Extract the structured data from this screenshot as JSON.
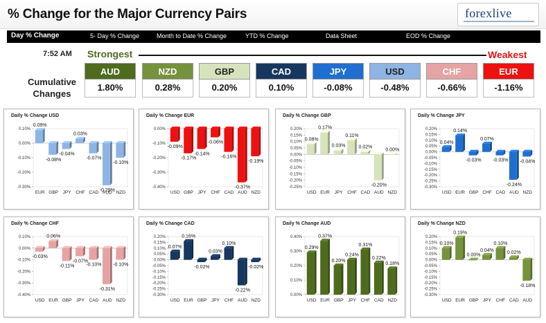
{
  "header": {
    "title": "% Change for the Major Currency Pairs"
  },
  "logo": {
    "brand_left": "fore",
    "brand_x": "x",
    "brand_right": "live"
  },
  "nav": {
    "tabs": [
      {
        "label": "Day % Change",
        "active": true
      },
      {
        "label": "5- Day % Change",
        "active": false
      },
      {
        "label": "Month to Date % Change",
        "active": false
      },
      {
        "label": "YTD % Change",
        "active": false
      },
      {
        "label": "Data Sheet",
        "active": false
      },
      {
        "label": "EOD % Change",
        "active": false
      }
    ]
  },
  "summary": {
    "time": "7:52 AM",
    "strongest": "Strongest",
    "weakest": "Weakest",
    "cumulative_label_line1": "Cumulative",
    "cumulative_label_line2": "Changes",
    "tiles": [
      {
        "currency": "AUD",
        "value": "1.80%",
        "bg": "#4e6b1e",
        "fg": "#ffffff"
      },
      {
        "currency": "NZD",
        "value": "0.28%",
        "bg": "#76923c",
        "fg": "#ffffff"
      },
      {
        "currency": "GBP",
        "value": "0.20%",
        "bg": "#d6e3bc",
        "fg": "#222222"
      },
      {
        "currency": "CAD",
        "value": "0.10%",
        "bg": "#17375e",
        "fg": "#ffffff"
      },
      {
        "currency": "JPY",
        "value": "-0.08%",
        "bg": "#1f6fd0",
        "fg": "#ffffff"
      },
      {
        "currency": "USD",
        "value": "-0.48%",
        "bg": "#8eb4e3",
        "fg": "#222222"
      },
      {
        "currency": "CHF",
        "value": "-0.66%",
        "bg": "#e6a3a3",
        "fg": "#ffffff"
      },
      {
        "currency": "EUR",
        "value": "-1.16%",
        "bg": "#ee1111",
        "fg": "#ffffff"
      }
    ]
  },
  "chart_data": [
    {
      "type": "bar",
      "title": "Daily % Change USD",
      "color": "#8eb4e3",
      "categories": [
        "EUR",
        "GBP",
        "JPY",
        "CHF",
        "CAD",
        "AUD",
        "NZD"
      ],
      "values": [
        0.09,
        -0.08,
        -0.04,
        0.03,
        -0.07,
        -0.29,
        -0.1
      ],
      "labels": [
        "0.09%",
        "-0.08%",
        "-0.04%",
        "0.03%",
        "-0.07%",
        "-0.29%",
        "-0.10%"
      ],
      "ylim": [
        -0.3,
        0.1
      ],
      "ticks": [
        "0.10%",
        "0.00%",
        "-0.10%",
        "-0.20%",
        "-0.30%"
      ]
    },
    {
      "type": "bar",
      "title": "Daily % Change EUR",
      "color": "#ee1111",
      "categories": [
        "USD",
        "GBP",
        "JPY",
        "CHF",
        "CAD",
        "AUD",
        "NZD"
      ],
      "values": [
        -0.09,
        -0.17,
        -0.14,
        -0.06,
        -0.16,
        -0.37,
        -0.19
      ],
      "labels": [
        "-0.09%",
        "-0.17%",
        "-0.14%",
        "-0.06%",
        "-0.16%",
        "-0.37%",
        "-0.19%"
      ],
      "ylim": [
        -0.4,
        0.0
      ],
      "ticks": [
        "0.00%",
        "-0.10%",
        "-0.20%",
        "-0.30%",
        "-0.40%"
      ]
    },
    {
      "type": "bar",
      "title": "Daily % Change GBP",
      "color": "#d6e3bc",
      "categories": [
        "USD",
        "EUR",
        "JPY",
        "CHF",
        "CAD",
        "AUD",
        "NZD"
      ],
      "values": [
        0.08,
        0.17,
        0.03,
        0.11,
        0.02,
        -0.2,
        0.0
      ],
      "labels": [
        "0.08%",
        "0.17%",
        "0.03%",
        "0.11%",
        "0.02%",
        "-0.20%",
        "0.00%"
      ],
      "ylim": [
        -0.25,
        0.2
      ],
      "ticks": [
        "0.20%",
        "0.15%",
        "0.10%",
        "0.05%",
        "0.00%",
        "-0.05%",
        "-0.10%",
        "-0.15%",
        "-0.20%",
        "-0.25%"
      ]
    },
    {
      "type": "bar",
      "title": "Daily % Change JPY",
      "color": "#1f6fd0",
      "categories": [
        "USD",
        "EUR",
        "GBP",
        "CHF",
        "CAD",
        "AUD",
        "NZD"
      ],
      "values": [
        0.04,
        0.14,
        -0.03,
        0.07,
        -0.03,
        -0.24,
        -0.04
      ],
      "labels": [
        "0.04%",
        "0.14%",
        "-0.03%",
        "0.07%",
        "-0.03%",
        "-0.24%",
        "-0.04%"
      ],
      "ylim": [
        -0.3,
        0.2
      ],
      "ticks": [
        "0.20%",
        "0.15%",
        "0.10%",
        "0.05%",
        "0.00%",
        "-0.05%",
        "-0.10%",
        "-0.15%",
        "-0.20%",
        "-0.25%",
        "-0.30%"
      ]
    },
    {
      "type": "bar",
      "title": "Daily % Change CHF",
      "color": "#e6a3a3",
      "categories": [
        "USD",
        "EUR",
        "GBP",
        "JPY",
        "CAD",
        "AUD",
        "NZD"
      ],
      "values": [
        -0.03,
        0.06,
        -0.11,
        -0.07,
        -0.1,
        -0.31,
        -0.1
      ],
      "labels": [
        "-0.03%",
        "0.06%",
        "-0.11%",
        "-0.07%",
        "-0.10%",
        "-0.31%",
        "-0.10%"
      ],
      "ylim": [
        -0.4,
        0.1
      ],
      "ticks": [
        "0.10%",
        "0.00%",
        "-0.10%",
        "-0.20%",
        "-0.30%",
        "-0.40%"
      ]
    },
    {
      "type": "bar",
      "title": "Daily % Change CAD",
      "color": "#17375e",
      "categories": [
        "USD",
        "EUR",
        "GBP",
        "JPY",
        "CHF",
        "AUD",
        "NZD"
      ],
      "values": [
        0.07,
        0.16,
        -0.02,
        0.03,
        0.1,
        -0.22,
        -0.02
      ],
      "labels": [
        "0.07%",
        "0.16%",
        "-0.02%",
        "0.03%",
        "0.10%",
        "-0.22%",
        "-0.02%"
      ],
      "ylim": [
        -0.3,
        0.2
      ],
      "ticks": [
        "0.20%",
        "0.15%",
        "0.10%",
        "0.05%",
        "0.00%",
        "-0.05%",
        "-0.10%",
        "-0.15%",
        "-0.20%",
        "-0.25%",
        "-0.30%"
      ]
    },
    {
      "type": "bar",
      "title": "Daily % Change AUD",
      "color": "#4e6b1e",
      "categories": [
        "USD",
        "EUR",
        "GBP",
        "JPY",
        "CHF",
        "CAD",
        "NZD"
      ],
      "values": [
        0.29,
        0.37,
        0.2,
        0.24,
        0.31,
        0.22,
        0.18
      ],
      "labels": [
        "0.29%",
        "0.37%",
        "0.20%",
        "0.24%",
        "0.31%",
        "0.22%",
        "0.18%"
      ],
      "ylim": [
        0.0,
        0.4
      ],
      "ticks": [
        "0.40%",
        "0.30%",
        "0.20%",
        "0.10%",
        "0.00%"
      ]
    },
    {
      "type": "bar",
      "title": "Daily % Change NZD",
      "color": "#76923c",
      "categories": [
        "USD",
        "EUR",
        "GBP",
        "JPY",
        "CHF",
        "CAD",
        "AUD"
      ],
      "values": [
        0.1,
        0.19,
        0.0,
        0.04,
        0.1,
        0.02,
        -0.18
      ],
      "labels": [
        "0.10%",
        "0.19%",
        "0.00%",
        "0.04%",
        "0.10%",
        "0.02%",
        "-0.18%"
      ],
      "ylim": [
        -0.3,
        0.2
      ],
      "ticks": [
        "0.20%",
        "0.15%",
        "0.10%",
        "0.05%",
        "0.00%",
        "-0.05%",
        "-0.10%",
        "-0.15%",
        "-0.20%",
        "-0.25%",
        "-0.30%"
      ]
    }
  ]
}
